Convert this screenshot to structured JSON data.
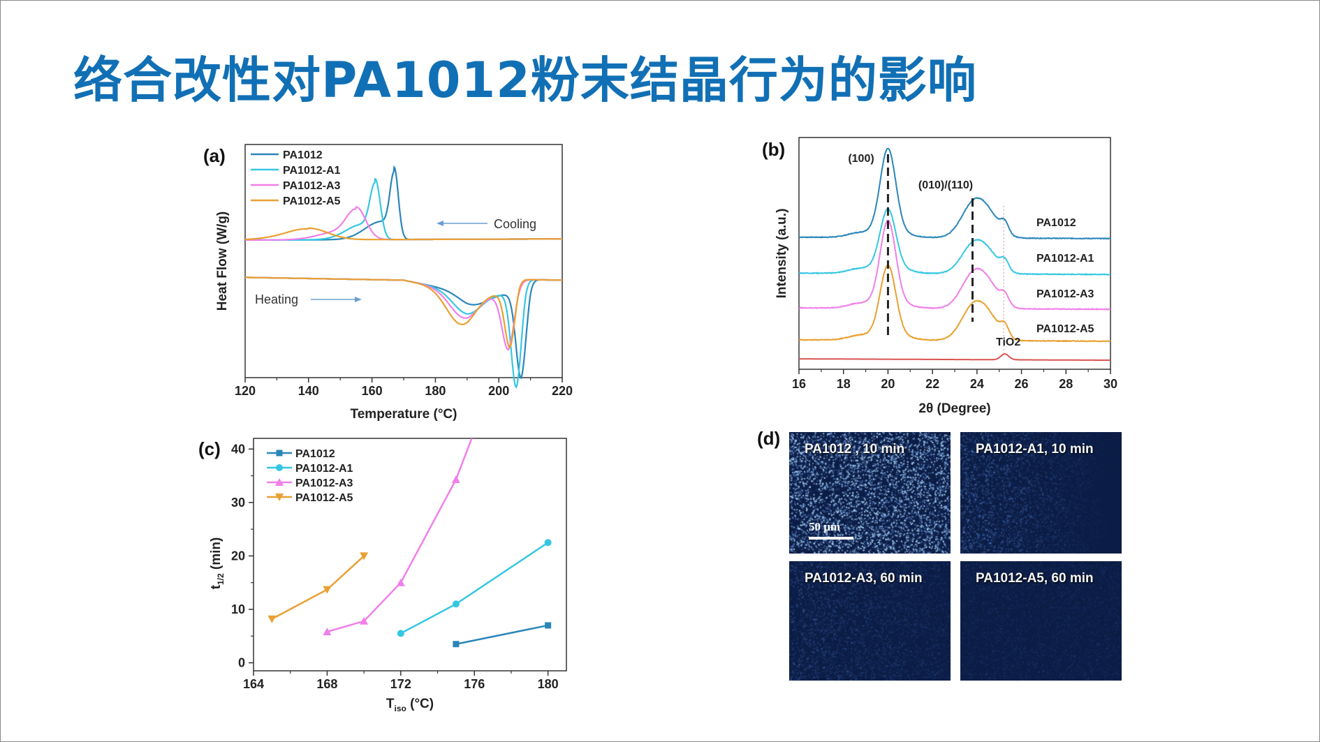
{
  "title": "络合改性对PA1012粉末结晶行为的影响",
  "colors": {
    "title": "#1170b5",
    "PA1012": "#2a86b8",
    "PA1012-A1": "#35c7e2",
    "PA1012-A3": "#f07fe9",
    "PA1012-A5": "#e9a032",
    "TiO2": "#d9534f"
  },
  "chart_data": [
    {
      "panel": "(a)",
      "type": "line",
      "xlabel": "Temperature (°C)",
      "ylabel": "Heat Flow (W/g)",
      "xlim": [
        120,
        220
      ],
      "xticks": [
        "120",
        "140",
        "160",
        "180",
        "200",
        "220"
      ],
      "y_units": "a.u. (no tick labels)",
      "legend_placement": "top-left",
      "annotations": {
        "cooling": "Cooling",
        "heating": "Heating"
      },
      "series": [
        {
          "name": "PA1012",
          "cooling_peak_temp": 167,
          "cooling_peak_height": 3.1,
          "melt_peak_temp": 207,
          "melt_depth": 3.6,
          "pre_melt_temp": 192,
          "pre_melt_depth": 0.5
        },
        {
          "name": "PA1012-A1",
          "cooling_peak_temp": 161,
          "cooling_peak_height": 2.6,
          "melt_peak_temp": 205.5,
          "melt_depth": 4.0,
          "pre_melt_temp": 190,
          "pre_melt_depth": 0.9
        },
        {
          "name": "PA1012-A3",
          "cooling_peak_temp": 155,
          "cooling_peak_height": 1.4,
          "melt_peak_temp": 203,
          "melt_depth": 2.4,
          "pre_melt_temp": 189,
          "pre_melt_depth": 1.1
        },
        {
          "name": "PA1012-A5",
          "cooling_peak_temp": 140,
          "cooling_peak_height": 0.5,
          "melt_peak_temp": 203.5,
          "melt_depth": 2.3,
          "pre_melt_temp": 188,
          "pre_melt_depth": 1.4
        }
      ]
    },
    {
      "panel": "(b)",
      "type": "line",
      "xlabel": "2θ (Degree)",
      "ylabel": "Intensity (a.u.)",
      "xlim": [
        16,
        30
      ],
      "xticks": [
        "16",
        "18",
        "20",
        "22",
        "24",
        "26",
        "28",
        "30"
      ],
      "peak_labels": [
        "(100)",
        "(010)/(110)",
        "TiO2"
      ],
      "peak_positions": [
        20.0,
        23.8,
        25.2
      ],
      "series": [
        {
          "name": "PA1012",
          "h100": 3.6,
          "h010": 1.7,
          "hTiO2": 0.45
        },
        {
          "name": "PA1012-A1",
          "h100": 2.55,
          "h010": 1.45,
          "hTiO2": 0.4
        },
        {
          "name": "PA1012-A3",
          "h100": 3.55,
          "h010": 1.7,
          "hTiO2": 0.4
        },
        {
          "name": "PA1012-A5",
          "h100": 3.0,
          "h010": 1.7,
          "hTiO2": 0.45
        },
        {
          "name": "TiO2",
          "h100": 0,
          "h010": 0,
          "hTiO2": 0.25
        }
      ]
    },
    {
      "panel": "(c)",
      "type": "line",
      "xlabel": "T_iso (°C)",
      "ylabel": "t_1/2 (min)",
      "xlim": [
        164,
        181
      ],
      "ylim": [
        -1.5,
        42
      ],
      "xticks": [
        "164",
        "168",
        "172",
        "176",
        "180"
      ],
      "yticks": [
        "0",
        "10",
        "20",
        "30",
        "40"
      ],
      "legend_placement": "top-left",
      "series": [
        {
          "name": "PA1012",
          "marker": "square",
          "x": [
            175,
            180
          ],
          "y": [
            3.5,
            7.0
          ]
        },
        {
          "name": "PA1012-A1",
          "marker": "circle",
          "x": [
            172,
            175,
            180
          ],
          "y": [
            5.5,
            11.0,
            22.5
          ]
        },
        {
          "name": "PA1012-A3",
          "marker": "triangle-up",
          "x": [
            168,
            170,
            172,
            175
          ],
          "y": [
            5.8,
            7.8,
            15.0,
            34.3
          ]
        },
        {
          "name": "PA1012-A5",
          "marker": "triangle-down",
          "x": [
            165,
            168,
            170
          ],
          "y": [
            8.2,
            13.7,
            20.0
          ]
        }
      ]
    }
  ],
  "micrographs": {
    "panel": "(d)",
    "images": [
      {
        "label": "PA1012 , 10 min",
        "brightness": 0.9
      },
      {
        "label": "PA1012-A1, 10 min",
        "brightness": 0.5
      },
      {
        "label": "PA1012-A3, 60 min",
        "brightness": 0.3
      },
      {
        "label": "PA1012-A5, 60 min",
        "brightness": 0.1
      }
    ],
    "scale_bar": "50 μm"
  }
}
